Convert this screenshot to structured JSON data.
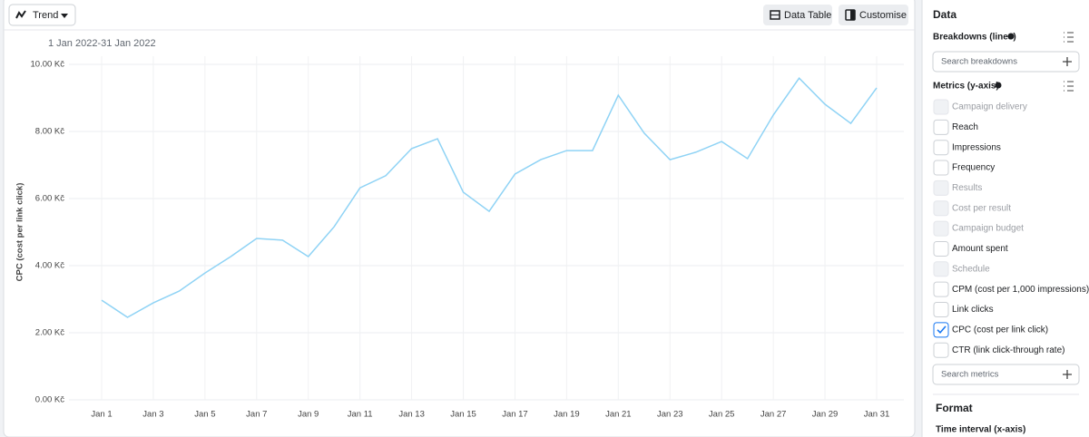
{
  "toolbar": {
    "view": "Trend",
    "buttons": [
      "Data Table",
      "Customise"
    ]
  },
  "chart_data": {
    "type": "line",
    "subtitle": "1 Jan 2022-31 Jan 2022",
    "y_label": "CPC (cost per link click)",
    "categories": [
      "Jan 1",
      null,
      "Jan 3",
      null,
      "Jan 5",
      null,
      "Jan 7",
      null,
      "Jan 9",
      null,
      "Jan 11",
      null,
      "Jan 13",
      null,
      "Jan 15",
      null,
      "Jan 17",
      null,
      "Jan 19",
      null,
      "Jan 21",
      null,
      "Jan 23",
      null,
      "Jan 25",
      null,
      "Jan 27",
      null,
      "Jan 29",
      null,
      "Jan 31"
    ],
    "values": [
      2.97,
      2.46,
      2.89,
      3.24,
      3.78,
      4.27,
      4.81,
      4.76,
      4.27,
      5.16,
      6.32,
      6.68,
      7.49,
      7.78,
      6.19,
      5.62,
      6.73,
      7.16,
      7.43,
      7.43,
      9.08,
      7.95,
      7.16,
      7.38,
      7.7,
      7.19,
      8.49,
      9.59,
      8.81,
      8.24,
      9.3
    ],
    "color": "#8fd3f5",
    "ylim": [
      0,
      10
    ],
    "yticks": [
      {
        "value": 0,
        "label": "0.00 Kč"
      },
      {
        "value": 2,
        "label": "2.00 Kč"
      },
      {
        "value": 4,
        "label": "4.00 Kč"
      },
      {
        "value": 6,
        "label": "6.00 Kč"
      },
      {
        "value": 8,
        "label": "8.00 Kč"
      },
      {
        "value": 10,
        "label": "10.00 Kč"
      }
    ],
    "grid": true
  },
  "sidebar": {
    "title": "Data",
    "breakdowns": {
      "label": "Breakdowns (lines)",
      "search": "Search breakdowns"
    },
    "metrics": {
      "label": "Metrics (y-axis)",
      "search": "Search metrics",
      "items": [
        {
          "label": "Campaign delivery",
          "checked": false,
          "disabled": true
        },
        {
          "label": "Reach",
          "checked": false,
          "disabled": false
        },
        {
          "label": "Impressions",
          "checked": false,
          "disabled": false
        },
        {
          "label": "Frequency",
          "checked": false,
          "disabled": false
        },
        {
          "label": "Results",
          "checked": false,
          "disabled": true
        },
        {
          "label": "Cost per result",
          "checked": false,
          "disabled": true
        },
        {
          "label": "Campaign budget",
          "checked": false,
          "disabled": true
        },
        {
          "label": "Amount spent",
          "checked": false,
          "disabled": false
        },
        {
          "label": "Schedule",
          "checked": false,
          "disabled": true
        },
        {
          "label": "CPM (cost per 1,000 impressions)",
          "checked": false,
          "disabled": false
        },
        {
          "label": "Link clicks",
          "checked": false,
          "disabled": false
        },
        {
          "label": "CPC (cost per link click)",
          "checked": true,
          "disabled": false
        },
        {
          "label": "CTR (link click-through rate)",
          "checked": false,
          "disabled": false
        }
      ]
    },
    "format": {
      "title": "Format",
      "time_interval": "Time interval (x-axis)"
    }
  }
}
